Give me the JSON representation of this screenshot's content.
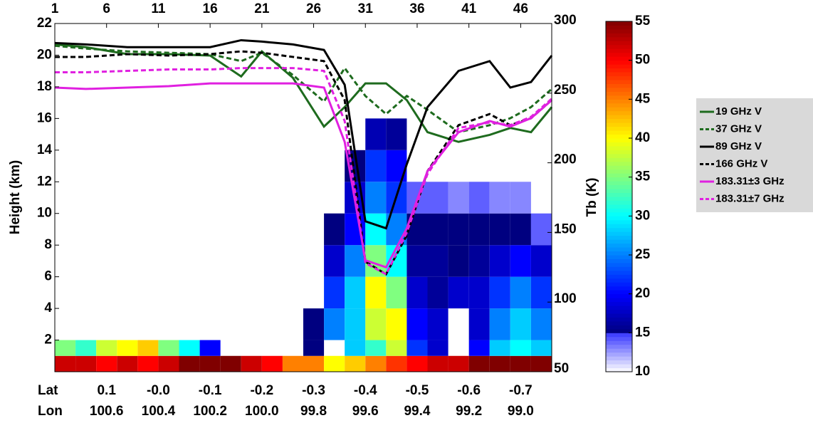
{
  "chart_data": {
    "type": "heatmap",
    "ylabel": "Height (km)",
    "y2label": "Tb (K)",
    "xlim": [
      1,
      49
    ],
    "xticks": [
      1,
      6,
      11,
      16,
      21,
      26,
      31,
      36,
      41,
      46
    ],
    "ylim": [
      0,
      22
    ],
    "yticks": [
      2,
      4,
      6,
      8,
      10,
      12,
      14,
      16,
      18,
      20,
      22
    ],
    "y2lim": [
      50,
      300
    ],
    "y2ticks": [
      50,
      100,
      150,
      200,
      250,
      300
    ],
    "lat_title": "Lat",
    "lat_ticks": [
      {
        "value": 6,
        "label": "0.1"
      },
      {
        "value": 11,
        "label": "-0.0"
      },
      {
        "value": 16,
        "label": "-0.1"
      },
      {
        "value": 21,
        "label": "-0.2"
      },
      {
        "value": 26,
        "label": "-0.3"
      },
      {
        "value": 31,
        "label": "-0.4"
      },
      {
        "value": 36,
        "label": "-0.5"
      },
      {
        "value": 41,
        "label": "-0.6"
      },
      {
        "value": 46,
        "label": "-0.7"
      }
    ],
    "lon_title": "Lon",
    "lon_ticks": [
      {
        "value": 6,
        "label": "100.6"
      },
      {
        "value": 11,
        "label": "100.4"
      },
      {
        "value": 16,
        "label": "100.2"
      },
      {
        "value": 21,
        "label": "100.0"
      },
      {
        "value": 26,
        "label": "99.8"
      },
      {
        "value": 31,
        "label": "99.6"
      },
      {
        "value": 36,
        "label": "99.4"
      },
      {
        "value": 41,
        "label": "99.2"
      },
      {
        "value": 46,
        "label": "99.0"
      }
    ],
    "x_bins": [
      1,
      3,
      5,
      7,
      9,
      11,
      13,
      15,
      17,
      19,
      21,
      23,
      25,
      27,
      29,
      31,
      33,
      35,
      37,
      39,
      41,
      43,
      45,
      47,
      49
    ],
    "y_bins": [
      0,
      1,
      2,
      4,
      6,
      8,
      10,
      12,
      14,
      16
    ],
    "z": [
      [
        52,
        52,
        50,
        52,
        50,
        52,
        55,
        55,
        55,
        52,
        50,
        45,
        45,
        40,
        42,
        45,
        48,
        50,
        52,
        52,
        55,
        55,
        55,
        55
      ],
      [
        35,
        32,
        38,
        40,
        42,
        35,
        30,
        20,
        null,
        null,
        null,
        null,
        15,
        null,
        28,
        32,
        38,
        22,
        18,
        null,
        20,
        28,
        30,
        28
      ],
      [
        null,
        null,
        null,
        null,
        null,
        null,
        null,
        null,
        null,
        null,
        null,
        null,
        15,
        25,
        28,
        38,
        40,
        20,
        18,
        null,
        18,
        25,
        28,
        25
      ],
      [
        null,
        null,
        null,
        null,
        null,
        null,
        null,
        null,
        null,
        null,
        null,
        null,
        null,
        22,
        28,
        40,
        35,
        18,
        16,
        18,
        18,
        22,
        25,
        22
      ],
      [
        null,
        null,
        null,
        null,
        null,
        null,
        null,
        null,
        null,
        null,
        null,
        null,
        null,
        18,
        25,
        35,
        30,
        16,
        16,
        15,
        16,
        18,
        20,
        18
      ],
      [
        null,
        null,
        null,
        null,
        null,
        null,
        null,
        null,
        null,
        null,
        null,
        null,
        null,
        15,
        20,
        30,
        25,
        15,
        15,
        15,
        15,
        15,
        15,
        14
      ],
      [
        null,
        null,
        null,
        null,
        null,
        null,
        null,
        null,
        null,
        null,
        null,
        null,
        null,
        null,
        18,
        25,
        22,
        14,
        14,
        13,
        14,
        13,
        13,
        null
      ],
      [
        null,
        null,
        null,
        null,
        null,
        null,
        null,
        null,
        null,
        null,
        null,
        null,
        null,
        null,
        15,
        22,
        20,
        null,
        null,
        null,
        null,
        null,
        null,
        null
      ],
      [
        null,
        null,
        null,
        null,
        null,
        null,
        null,
        null,
        null,
        null,
        null,
        null,
        null,
        null,
        null,
        17,
        16,
        null,
        null,
        null,
        null,
        null,
        null,
        null
      ]
    ],
    "zlim": [
      10,
      55
    ],
    "zticks": [
      10,
      15,
      20,
      25,
      30,
      35,
      40,
      45,
      50,
      55
    ],
    "x": [
      1,
      4,
      8,
      12,
      16,
      19,
      21,
      24,
      27,
      29,
      31,
      33,
      35,
      37,
      40,
      43,
      45,
      47,
      49
    ],
    "series": [
      {
        "name": "19 GHz V",
        "color": "#1e6b1e",
        "style": "solid",
        "axis": "y2",
        "values": [
          285,
          283,
          278,
          278,
          277,
          262,
          280,
          261,
          226,
          240,
          257,
          257,
          245,
          222,
          215,
          220,
          225,
          222,
          240
        ]
      },
      {
        "name": "37 GHz V",
        "color": "#1e6b1e",
        "style": "dashed",
        "axis": "y2",
        "values": [
          284,
          282,
          280,
          279,
          278,
          273,
          279,
          263,
          244,
          268,
          248,
          235,
          248,
          238,
          222,
          227,
          232,
          240,
          253
        ]
      },
      {
        "name": "89 GHz V",
        "color": "#000000",
        "style": "solid",
        "axis": "y2",
        "values": [
          286,
          285,
          283,
          283,
          283,
          288,
          287,
          285,
          281,
          256,
          158,
          153,
          199,
          240,
          266,
          273,
          254,
          258,
          277
        ]
      },
      {
        "name": "166 GHz V",
        "color": "#000000",
        "style": "dashed",
        "axis": "y2",
        "values": [
          276,
          276,
          278,
          277,
          278,
          280,
          279,
          276,
          273,
          245,
          129,
          120,
          148,
          194,
          227,
          235,
          227,
          232,
          245
        ]
      },
      {
        "name": "183.31±3 GHz",
        "color": "#e020e0",
        "style": "solid",
        "axis": "y2",
        "values": [
          254,
          253,
          254,
          255,
          257,
          257,
          257,
          257,
          254,
          215,
          130,
          125,
          153,
          194,
          222,
          230,
          226,
          232,
          245
        ]
      },
      {
        "name": "183.31±7 GHz",
        "color": "#e020e0",
        "style": "dashed",
        "axis": "y2",
        "values": [
          265,
          265,
          266,
          267,
          267,
          268,
          268,
          268,
          266,
          230,
          128,
          120,
          150,
          192,
          225,
          229,
          227,
          233,
          246
        ]
      }
    ]
  }
}
